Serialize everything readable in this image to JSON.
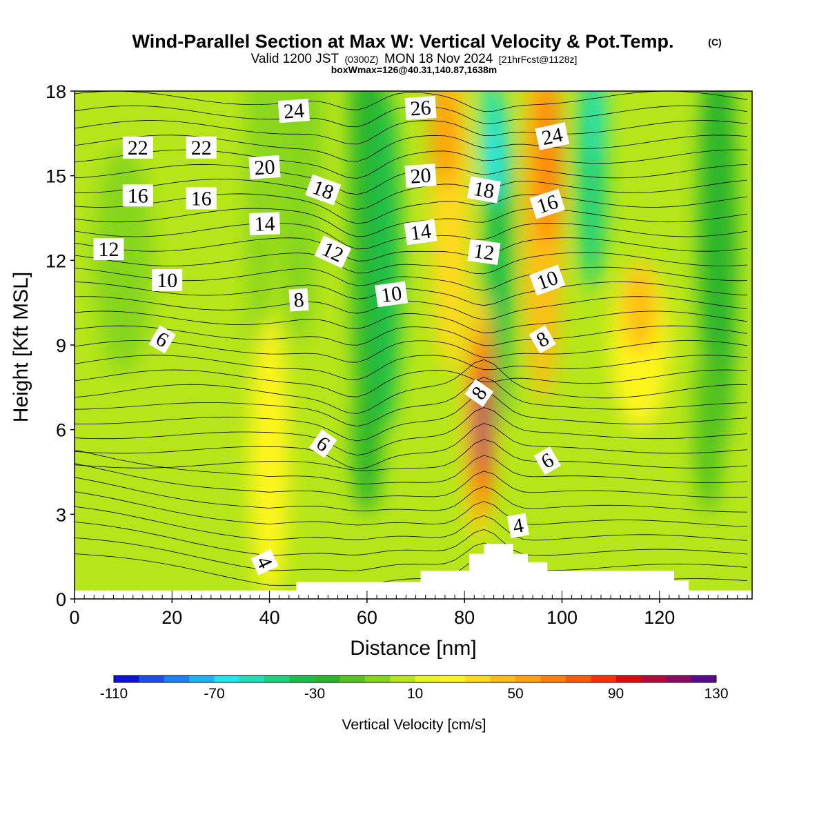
{
  "chart_data": {
    "type": "heatmap",
    "title": "Wind-Parallel Section at Max W: Vertical Velocity & Pot.Temp.",
    "title_mark": "(C)",
    "subtitle_prefix": "Valid 1200 JST",
    "subtitle_zulu": "(0300Z)",
    "subtitle_date": "MON 18 Nov 2024",
    "subtitle_fcst": "[21hrFcst@1128z]",
    "subtitle2": "boxWmax=126@40.31,140.87,1638m",
    "xlabel": "Distance [nm]",
    "ylabel": "Height [Kft MSL]",
    "xlim": [
      0,
      139
    ],
    "ylim": [
      0,
      18
    ],
    "x_ticks": [
      "0",
      "20",
      "40",
      "60",
      "80",
      "100",
      "120"
    ],
    "y_ticks": [
      "0",
      "3",
      "6",
      "9",
      "12",
      "15",
      "18"
    ],
    "colorbar": {
      "label": "Vertical Velocity [cm/s]",
      "tick_labels": [
        "-110",
        "-70",
        "-30",
        "10",
        "50",
        "90",
        "130"
      ],
      "range": [
        -110,
        130
      ],
      "colors": [
        "#0a14d6",
        "#1b4fe8",
        "#1e7ff0",
        "#1fb4f5",
        "#1fe6f0",
        "#1fe0b8",
        "#1ed27e",
        "#1ac04a",
        "#2ab52a",
        "#55c41e",
        "#86d61a",
        "#b6e619",
        "#ebf521",
        "#fff51f",
        "#ffd91a",
        "#ffbd14",
        "#ffa00f",
        "#ff800a",
        "#ff5a08",
        "#ff2e05",
        "#e00a0a",
        "#b40a3c",
        "#8c0a64",
        "#5a0a8c"
      ]
    },
    "contour_labels": [
      "22",
      "22",
      "24",
      "26",
      "24",
      "20",
      "20",
      "18",
      "18",
      "16",
      "16",
      "16",
      "14",
      "14",
      "12",
      "12",
      "12",
      "10",
      "10",
      "10",
      "8",
      "8",
      "8",
      "6",
      "6",
      "6",
      "4",
      "4"
    ],
    "terrain": [
      [
        0,
        0.3
      ],
      [
        45.5,
        0.3
      ],
      [
        45.5,
        0.6
      ],
      [
        71,
        0.6
      ],
      [
        71,
        1.0
      ],
      [
        81,
        1.0
      ],
      [
        81,
        1.6
      ],
      [
        84,
        1.6
      ],
      [
        84,
        1.95
      ],
      [
        90,
        1.95
      ],
      [
        90,
        1.6
      ],
      [
        93,
        1.6
      ],
      [
        93,
        1.3
      ],
      [
        97,
        1.3
      ],
      [
        97,
        1.0
      ],
      [
        123,
        1.0
      ],
      [
        123,
        0.65
      ],
      [
        126,
        0.65
      ],
      [
        126,
        0.3
      ],
      [
        139,
        0.3
      ]
    ]
  }
}
